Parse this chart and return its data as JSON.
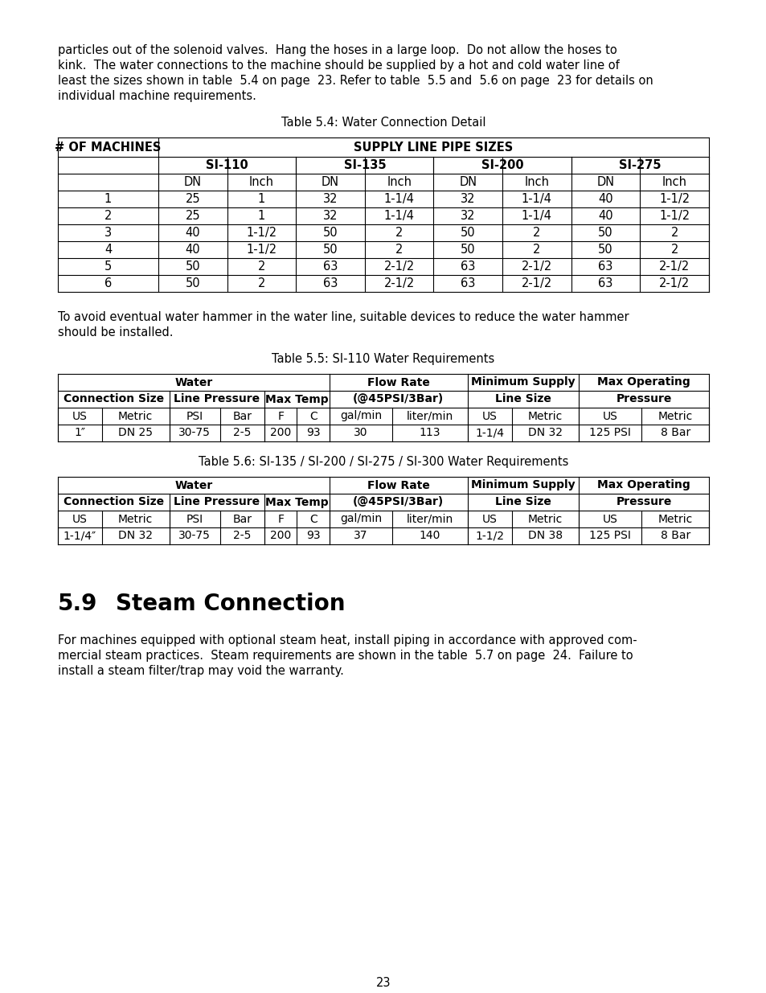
{
  "bg_color": "#ffffff",
  "text_color": "#000000",
  "intro_text": [
    "particles out of the solenoid valves.  Hang the hoses in a large loop.  Do not allow the hoses to",
    "kink.  The water connections to the machine should be supplied by a hot and cold water line of",
    "least the sizes shown in table  5.4 on page  23. Refer to table  5.5 and  5.6 on page  23 for details on",
    "individual machine requirements."
  ],
  "table54_title": "Table 5.4: Water Connection Detail",
  "table54_rows": [
    [
      "1",
      "25",
      "1",
      "32",
      "1-1/4",
      "32",
      "1-1/4",
      "40",
      "1-1/2"
    ],
    [
      "2",
      "25",
      "1",
      "32",
      "1-1/4",
      "32",
      "1-1/4",
      "40",
      "1-1/2"
    ],
    [
      "3",
      "40",
      "1-1/2",
      "50",
      "2",
      "50",
      "2",
      "50",
      "2"
    ],
    [
      "4",
      "40",
      "1-1/2",
      "50",
      "2",
      "50",
      "2",
      "50",
      "2"
    ],
    [
      "5",
      "50",
      "2",
      "63",
      "2-1/2",
      "63",
      "2-1/2",
      "63",
      "2-1/2"
    ],
    [
      "6",
      "50",
      "2",
      "63",
      "2-1/2",
      "63",
      "2-1/2",
      "63",
      "2-1/2"
    ]
  ],
  "para2_text": [
    "To avoid eventual water hammer in the water line, suitable devices to reduce the water hammer",
    "should be installed."
  ],
  "table55_title": "Table 5.5: SI-110 Water Requirements",
  "table55_header3": [
    "US",
    "Metric",
    "PSI",
    "Bar",
    "F",
    "C",
    "gal/min",
    "liter/min",
    "US",
    "Metric",
    "US",
    "Metric"
  ],
  "table55_rows": [
    [
      "1″",
      "DN 25",
      "30-75",
      "2-5",
      "200",
      "93",
      "30",
      "113",
      "1-1/4",
      "DN 32",
      "125 PSI",
      "8 Bar"
    ]
  ],
  "table56_title": "Table 5.6: SI-135 / SI-200 / SI-275 / SI-300 Water Requirements",
  "table56_header3": [
    "US",
    "Metric",
    "PSI",
    "Bar",
    "F",
    "C",
    "gal/min",
    "liter/min",
    "US",
    "Metric",
    "US",
    "Metric"
  ],
  "table56_rows": [
    [
      "1-1/4″",
      "DN 32",
      "30-75",
      "2-5",
      "200",
      "93",
      "37",
      "140",
      "1-1/2",
      "DN 38",
      "125 PSI",
      "8 Bar"
    ]
  ],
  "section_heading_num": "5.9",
  "section_heading_text": "Steam Connection",
  "para3_text": [
    "For machines equipped with optional steam heat, install piping in accordance with approved com-",
    "mercial steam practices.  Steam requirements are shown in the table  5.7 on page  24.  Failure to",
    "install a steam filter/trap may void the warranty."
  ],
  "page_number": "23"
}
